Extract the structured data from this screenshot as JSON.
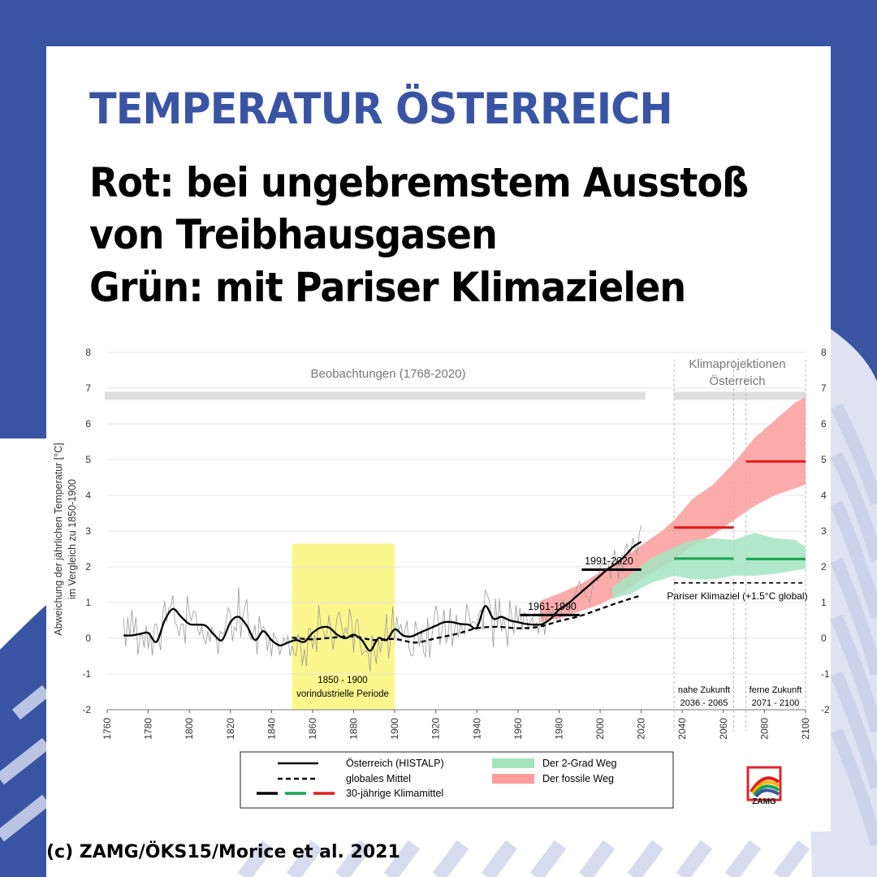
{
  "header": {
    "title": "TEMPERATUR ÖSTERREICH",
    "subtitle_line1": "Rot: bei ungebremstem Ausstoß",
    "subtitle_line2": "von Treibhausgasen",
    "subtitle_line3": "Grün: mit Pariser Klimazielen"
  },
  "footer": {
    "credit": "(c) ZAMG/ÖKS15/Morice et al. 2021"
  },
  "logo": {
    "text": "ZAMG"
  },
  "colors": {
    "brand_blue": "#3a54a4",
    "observation": "#000000",
    "red_line": "#e31a1c",
    "green_line": "#1aa352",
    "red_band": "#fc9c9c",
    "green_band": "#a3e4bf",
    "preindustrial": "#fcf78c"
  },
  "chart_data": {
    "type": "line",
    "title": "",
    "xlabel": "",
    "ylabel": "Abweichung der jährlichen Temperatur [°C]",
    "ylabel2": "im Vergleich zu 1850-1900",
    "xlim": [
      1760,
      2100
    ],
    "ylim": [
      -2,
      8
    ],
    "xticks": [
      1760,
      1780,
      1800,
      1820,
      1840,
      1860,
      1880,
      1900,
      1920,
      1940,
      1960,
      1980,
      2000,
      2020,
      2040,
      2060,
      2080,
      2100
    ],
    "yticks": [
      -2,
      -1,
      0,
      1,
      2,
      3,
      4,
      5,
      6,
      7,
      8
    ],
    "grid": true,
    "annotations": {
      "observations": "Beobachtungen (1768-2020)",
      "projections_1": "Klimaprojektionen",
      "projections_2": "Österreich",
      "preindustrial_1": "1850 - 1900",
      "preindustrial_2": "vorindustrielle Periode",
      "mean_1961": "1961-1990",
      "mean_1991": "1991-2020",
      "paris": "Pariser Klimaziel (+1.5°C global)",
      "near_1": "nahe Zukunft",
      "near_2": "2036 - 2065",
      "far_1": "ferne Zukunft",
      "far_2": "2071 - 2100"
    },
    "regions": {
      "preindustrial": [
        1850,
        1900
      ],
      "observations": [
        1760,
        2022
      ],
      "projections": [
        2036,
        2100
      ],
      "near_future": [
        2036,
        2065
      ],
      "far_future": [
        2071,
        2100
      ]
    },
    "series": [
      {
        "name": "Österreich (HISTALP)",
        "style": "solid",
        "x": [
          1768,
          1772,
          1776,
          1780,
          1784,
          1788,
          1792,
          1796,
          1800,
          1804,
          1808,
          1812,
          1816,
          1820,
          1824,
          1828,
          1832,
          1836,
          1840,
          1844,
          1848,
          1852,
          1856,
          1860,
          1864,
          1868,
          1872,
          1876,
          1880,
          1884,
          1888,
          1892,
          1896,
          1900,
          1904,
          1908,
          1912,
          1916,
          1920,
          1924,
          1928,
          1932,
          1936,
          1940,
          1944,
          1948,
          1952,
          1956,
          1960,
          1964,
          1968,
          1972,
          1976,
          1980,
          1984,
          1988,
          1992,
          1996,
          2000,
          2004,
          2008,
          2012,
          2016,
          2020
        ],
        "y": [
          0.08,
          0.08,
          0.12,
          0.15,
          -0.1,
          0.5,
          0.82,
          0.6,
          0.4,
          0.38,
          0.35,
          0.1,
          -0.05,
          0.45,
          0.6,
          0.35,
          -0.05,
          0.2,
          -0.05,
          -0.2,
          -0.12,
          -0.05,
          -0.1,
          0.15,
          0.3,
          0.3,
          0.1,
          0.0,
          0.1,
          -0.05,
          -0.35,
          0.0,
          -0.05,
          0.25,
          0.08,
          0.05,
          0.15,
          0.25,
          0.35,
          0.45,
          0.45,
          0.4,
          0.38,
          0.3,
          0.9,
          0.55,
          0.6,
          0.5,
          0.45,
          0.4,
          0.38,
          0.4,
          0.55,
          0.8,
          0.95,
          1.15,
          1.35,
          1.55,
          1.75,
          1.95,
          2.1,
          2.3,
          2.55,
          2.7
        ]
      },
      {
        "name": "globales Mittel",
        "style": "dashed",
        "x": [
          1850,
          1860,
          1870,
          1880,
          1890,
          1900,
          1910,
          1920,
          1930,
          1940,
          1950,
          1960,
          1970,
          1980,
          1990,
          2000,
          2010,
          2020
        ],
        "y": [
          0.02,
          -0.03,
          0.02,
          0.05,
          -0.05,
          -0.02,
          -0.12,
          0.0,
          0.12,
          0.28,
          0.32,
          0.28,
          0.32,
          0.48,
          0.62,
          0.82,
          1.02,
          1.2
        ]
      }
    ],
    "period_means": [
      {
        "label": "1961-1990",
        "x": [
          1961,
          1990
        ],
        "y": 0.65,
        "color": "#000000"
      },
      {
        "label": "1991-2020",
        "x": [
          1991,
          2020
        ],
        "y": 1.92,
        "color": "#000000"
      },
      {
        "label": "Der fossile Weg 2036-2065",
        "x": [
          2036,
          2065
        ],
        "y": 3.1,
        "color": "#e31a1c"
      },
      {
        "label": "Der fossile Weg 2071-2100",
        "x": [
          2071,
          2100
        ],
        "y": 4.95,
        "color": "#e31a1c"
      },
      {
        "label": "Der 2-Grad Weg 2036-2065",
        "x": [
          2036,
          2065
        ],
        "y": 2.23,
        "color": "#1aa352"
      },
      {
        "label": "Der 2-Grad Weg 2071-2100",
        "x": [
          2071,
          2100
        ],
        "y": 2.22,
        "color": "#1aa352"
      }
    ],
    "paris_target": {
      "x": [
        2036,
        2100
      ],
      "y": 1.55
    },
    "bands": [
      {
        "name": "Der fossile Weg",
        "x": [
          1971,
          1980,
          1990,
          2000,
          2010,
          2020,
          2030,
          2036,
          2045,
          2055,
          2065,
          2075,
          2085,
          2095,
          2100
        ],
        "upper": [
          1.05,
          1.25,
          1.5,
          1.85,
          2.2,
          2.6,
          3.0,
          3.3,
          3.9,
          4.3,
          4.9,
          5.6,
          6.1,
          6.6,
          6.75
        ],
        "lower": [
          0.45,
          0.55,
          0.75,
          0.95,
          1.25,
          1.65,
          2.0,
          2.2,
          2.6,
          2.9,
          3.3,
          3.7,
          4.0,
          4.2,
          4.3
        ]
      },
      {
        "name": "Der 2-Grad Weg",
        "x": [
          2006,
          2015,
          2025,
          2036,
          2045,
          2055,
          2065,
          2075,
          2085,
          2095,
          2100
        ],
        "upper": [
          1.45,
          1.8,
          2.25,
          2.55,
          2.75,
          2.8,
          2.75,
          2.95,
          2.8,
          2.75,
          2.55
        ],
        "lower": [
          1.1,
          1.25,
          1.55,
          1.75,
          1.65,
          1.65,
          1.75,
          1.75,
          1.8,
          1.9,
          1.95
        ]
      }
    ],
    "legend": {
      "position": "bottom",
      "items": [
        {
          "label": "Österreich (HISTALP)",
          "kind": "line-solid"
        },
        {
          "label": "globales Mittel",
          "kind": "line-dashed"
        },
        {
          "label": "30-jährige Klimamittel",
          "kind": "line-tricolor"
        },
        {
          "label": "Der 2-Grad Weg",
          "kind": "band-green"
        },
        {
          "label": "Der fossile Weg",
          "kind": "band-red"
        }
      ]
    }
  }
}
